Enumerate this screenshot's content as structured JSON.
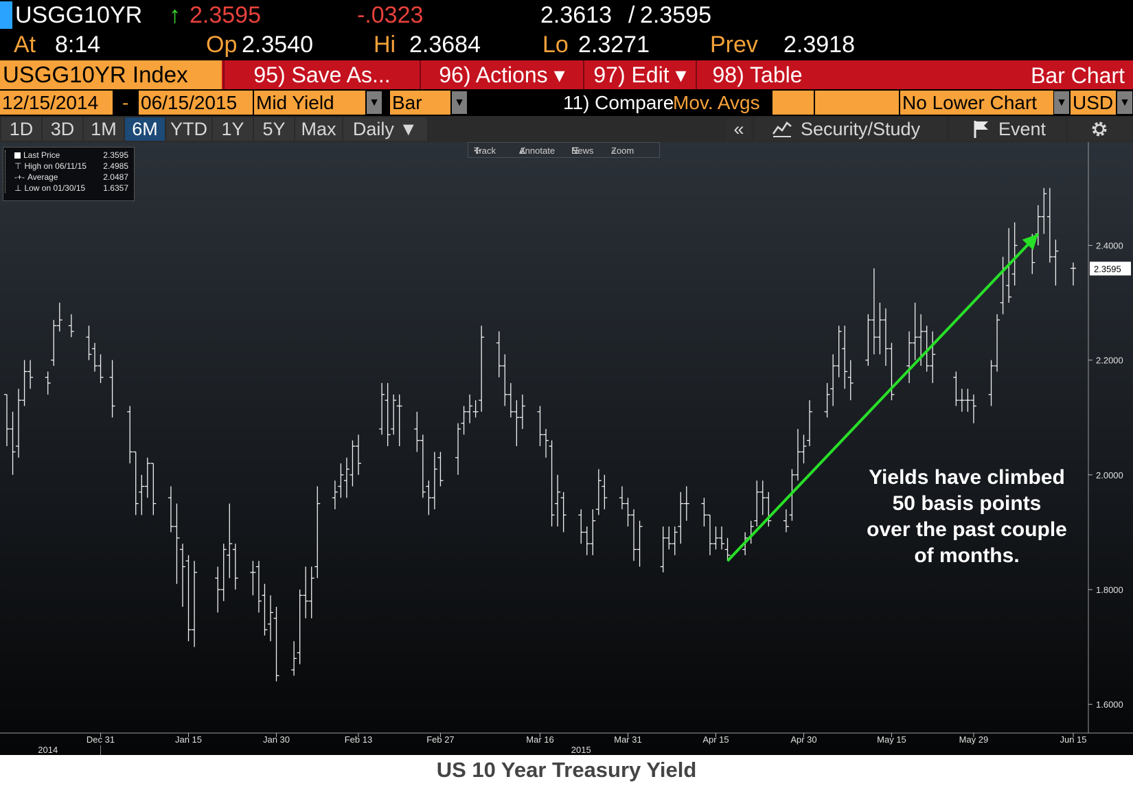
{
  "quote": {
    "ticker": "USGG10YR",
    "arrow": "↑",
    "last": "2.3595",
    "change": "-.0323",
    "bid": "2.3613",
    "sep": "/",
    "ask": "2.3595",
    "at_label": "At",
    "time": "8:14",
    "op_label": "Op",
    "op": "2.3540",
    "hi_label": "Hi",
    "hi": "2.3684",
    "lo_label": "Lo",
    "lo": "2.3271",
    "prev_label": "Prev",
    "prev": "2.3918"
  },
  "menubar": {
    "index_title": "USGG10YR Index",
    "items": [
      "95) Save As...",
      "96) Actions ▾",
      "97) Edit ▾",
      "98) Table"
    ],
    "right_label": "Bar Chart"
  },
  "settings": {
    "start_date": "12/15/2014",
    "dash": "-",
    "end_date": "06/15/2015",
    "field": "Mid Yield",
    "chart_type": "Bar",
    "compare_label": "11) Compare",
    "mov_avgs": "Mov. Avgs",
    "lower_chart": "No Lower Chart",
    "currency": "USD"
  },
  "tabs": {
    "ranges": [
      "1D",
      "3D",
      "1M",
      "6M",
      "YTD",
      "1Y",
      "5Y",
      "Max"
    ],
    "active": "6M",
    "frequency": "Daily ▼",
    "collapse": "«",
    "security_study": "Security/Study",
    "event": "Event"
  },
  "toolstrip": [
    "Track",
    "Annotate",
    "News",
    "Zoom"
  ],
  "legend": [
    {
      "label": "Last Price",
      "value": "2.3595"
    },
    {
      "label": "High on 06/11/15",
      "value": "2.4985"
    },
    {
      "label": "Average",
      "value": "2.0487"
    },
    {
      "label": "Low on 01/30/15",
      "value": "1.6357"
    }
  ],
  "last_price_tag": "2.3595",
  "annotation": {
    "text_lines": [
      "Yields have climbed",
      "50 basis points",
      "over the past couple",
      "of months."
    ],
    "arrow_from": {
      "date": "2015-04-17",
      "value": 1.85
    },
    "arrow_to": {
      "date": "2015-06-09",
      "value": 2.42
    },
    "arrow_color": "#28e028"
  },
  "caption": "US 10 Year Treasury Yield",
  "chart_data": {
    "type": "bar",
    "title": "",
    "xlabel": "",
    "ylabel": "",
    "ylim": [
      1.55,
      2.58
    ],
    "y_ticks": [
      "2.4000",
      "2.2000",
      "2.0000",
      "1.8000",
      "1.6000"
    ],
    "x_ticks": [
      {
        "label": "Dec 31",
        "date": "2014-12-31"
      },
      {
        "label": "Jan 15",
        "date": "2015-01-15"
      },
      {
        "label": "Jan 30",
        "date": "2015-01-30"
      },
      {
        "label": "Feb 13",
        "date": "2015-02-13"
      },
      {
        "label": "Feb 27",
        "date": "2015-02-27"
      },
      {
        "label": "Mar 16",
        "date": "2015-03-16"
      },
      {
        "label": "Mar 31",
        "date": "2015-03-31"
      },
      {
        "label": "Apr 15",
        "date": "2015-04-15"
      },
      {
        "label": "Apr 30",
        "date": "2015-04-30"
      },
      {
        "label": "May 15",
        "date": "2015-05-15"
      },
      {
        "label": "May 29",
        "date": "2015-05-29"
      },
      {
        "label": "Jun 15",
        "date": "2015-06-15"
      }
    ],
    "year_labels": [
      {
        "label": "2014",
        "date": "2014-12-22"
      },
      {
        "label": "2015",
        "date": "2015-03-23"
      }
    ],
    "x_start": "2014-12-15",
    "x_end": "2015-06-15",
    "series": [
      {
        "name": "Mid Yield",
        "ohlc": [
          [
            "2014-12-15",
            2.14,
            2.14,
            2.05,
            2.08
          ],
          [
            "2014-12-16",
            2.08,
            2.11,
            2.0,
            2.04
          ],
          [
            "2014-12-17",
            2.05,
            2.15,
            2.03,
            2.13
          ],
          [
            "2014-12-18",
            2.13,
            2.2,
            2.12,
            2.18
          ],
          [
            "2014-12-19",
            2.18,
            2.2,
            2.15,
            2.17
          ],
          [
            "2014-12-22",
            2.17,
            2.18,
            2.14,
            2.16
          ],
          [
            "2014-12-23",
            2.2,
            2.27,
            2.19,
            2.26
          ],
          [
            "2014-12-24",
            2.26,
            2.3,
            2.25,
            2.27
          ],
          [
            "2014-12-26",
            2.26,
            2.28,
            2.24,
            2.25
          ],
          [
            "2014-12-29",
            2.24,
            2.26,
            2.2,
            2.21
          ],
          [
            "2014-12-30",
            2.22,
            2.23,
            2.18,
            2.19
          ],
          [
            "2014-12-31",
            2.19,
            2.21,
            2.16,
            2.17
          ],
          [
            "2015-01-02",
            2.17,
            2.2,
            2.1,
            2.12
          ],
          [
            "2015-01-05",
            2.11,
            2.12,
            2.02,
            2.04
          ],
          [
            "2015-01-06",
            2.04,
            2.04,
            1.93,
            1.95
          ],
          [
            "2015-01-07",
            1.97,
            2.0,
            1.93,
            1.98
          ],
          [
            "2015-01-08",
            1.98,
            2.03,
            1.96,
            2.02
          ],
          [
            "2015-01-09",
            2.02,
            2.02,
            1.93,
            1.95
          ],
          [
            "2015-01-12",
            1.96,
            1.98,
            1.9,
            1.91
          ],
          [
            "2015-01-13",
            1.91,
            1.95,
            1.81,
            1.89
          ],
          [
            "2015-01-14",
            1.87,
            1.88,
            1.77,
            1.84
          ],
          [
            "2015-01-15",
            1.85,
            1.86,
            1.71,
            1.73
          ],
          [
            "2015-01-16",
            1.73,
            1.85,
            1.7,
            1.83
          ],
          [
            "2015-01-20",
            1.82,
            1.84,
            1.76,
            1.8
          ],
          [
            "2015-01-21",
            1.8,
            1.88,
            1.78,
            1.87
          ],
          [
            "2015-01-22",
            1.86,
            1.95,
            1.82,
            1.88
          ],
          [
            "2015-01-23",
            1.87,
            1.88,
            1.8,
            1.82
          ],
          [
            "2015-01-26",
            1.83,
            1.85,
            1.79,
            1.83
          ],
          [
            "2015-01-27",
            1.84,
            1.85,
            1.76,
            1.78
          ],
          [
            "2015-01-28",
            1.79,
            1.81,
            1.72,
            1.73
          ],
          [
            "2015-01-29",
            1.74,
            1.79,
            1.71,
            1.76
          ],
          [
            "2015-01-30",
            1.75,
            1.77,
            1.64,
            1.65
          ],
          [
            "2015-02-02",
            1.66,
            1.71,
            1.65,
            1.68
          ],
          [
            "2015-02-03",
            1.69,
            1.8,
            1.67,
            1.79
          ],
          [
            "2015-02-04",
            1.79,
            1.84,
            1.75,
            1.78
          ],
          [
            "2015-02-05",
            1.78,
            1.84,
            1.75,
            1.82
          ],
          [
            "2015-02-06",
            1.84,
            1.98,
            1.82,
            1.95
          ],
          [
            "2015-02-09",
            1.96,
            1.99,
            1.94,
            1.97
          ],
          [
            "2015-02-10",
            1.98,
            2.02,
            1.96,
            2.0
          ],
          [
            "2015-02-11",
            1.99,
            2.03,
            1.96,
            2.01
          ],
          [
            "2015-02-12",
            2.0,
            2.06,
            1.98,
            2.05
          ],
          [
            "2015-02-13",
            2.05,
            2.07,
            2.0,
            2.02
          ],
          [
            "2015-02-17",
            2.08,
            2.16,
            2.07,
            2.14
          ],
          [
            "2015-02-18",
            2.13,
            2.16,
            2.05,
            2.07
          ],
          [
            "2015-02-19",
            2.08,
            2.14,
            2.07,
            2.13
          ],
          [
            "2015-02-20",
            2.12,
            2.14,
            2.05,
            2.12
          ],
          [
            "2015-02-23",
            2.08,
            2.11,
            2.04,
            2.06
          ],
          [
            "2015-02-24",
            2.06,
            2.07,
            1.96,
            1.97
          ],
          [
            "2015-02-25",
            1.98,
            1.99,
            1.93,
            1.96
          ],
          [
            "2015-02-26",
            1.96,
            2.04,
            1.94,
            2.01
          ],
          [
            "2015-02-27",
            2.03,
            2.04,
            1.98,
            1.99
          ],
          [
            "2015-03-02",
            2.03,
            2.09,
            2.0,
            2.08
          ],
          [
            "2015-03-03",
            2.09,
            2.12,
            2.07,
            2.11
          ],
          [
            "2015-03-04",
            2.11,
            2.14,
            2.09,
            2.12
          ],
          [
            "2015-03-05",
            2.11,
            2.13,
            2.1,
            2.11
          ],
          [
            "2015-03-06",
            2.13,
            2.26,
            2.11,
            2.24
          ],
          [
            "2015-03-09",
            2.23,
            2.25,
            2.17,
            2.19
          ],
          [
            "2015-03-10",
            2.19,
            2.21,
            2.12,
            2.14
          ],
          [
            "2015-03-11",
            2.14,
            2.16,
            2.1,
            2.11
          ],
          [
            "2015-03-12",
            2.11,
            2.13,
            2.05,
            2.1
          ],
          [
            "2015-03-13",
            2.1,
            2.14,
            2.08,
            2.12
          ],
          [
            "2015-03-16",
            2.11,
            2.12,
            2.05,
            2.07
          ],
          [
            "2015-03-17",
            2.07,
            2.08,
            2.03,
            2.06
          ],
          [
            "2015-03-18",
            2.05,
            2.06,
            1.91,
            1.93
          ],
          [
            "2015-03-19",
            1.95,
            2.0,
            1.91,
            1.97
          ],
          [
            "2015-03-20",
            1.96,
            1.97,
            1.9,
            1.93
          ],
          [
            "2015-03-23",
            1.93,
            1.94,
            1.88,
            1.9
          ],
          [
            "2015-03-24",
            1.9,
            1.91,
            1.86,
            1.88
          ],
          [
            "2015-03-25",
            1.88,
            1.94,
            1.86,
            1.92
          ],
          [
            "2015-03-26",
            1.94,
            2.01,
            1.93,
            1.99
          ],
          [
            "2015-03-27",
            1.98,
            2.0,
            1.94,
            1.96
          ],
          [
            "2015-03-30",
            1.96,
            1.98,
            1.94,
            1.95
          ],
          [
            "2015-03-31",
            1.95,
            1.96,
            1.91,
            1.93
          ],
          [
            "2015-04-01",
            1.93,
            1.94,
            1.85,
            1.87
          ],
          [
            "2015-04-02",
            1.87,
            1.92,
            1.84,
            1.91
          ],
          [
            "2015-04-06",
            1.84,
            1.91,
            1.83,
            1.89
          ],
          [
            "2015-04-07",
            1.89,
            1.91,
            1.87,
            1.88
          ],
          [
            "2015-04-08",
            1.88,
            1.91,
            1.86,
            1.9
          ],
          [
            "2015-04-09",
            1.91,
            1.97,
            1.88,
            1.95
          ],
          [
            "2015-04-10",
            1.95,
            1.98,
            1.92,
            1.95
          ],
          [
            "2015-04-13",
            1.95,
            1.96,
            1.91,
            1.93
          ],
          [
            "2015-04-14",
            1.93,
            1.93,
            1.86,
            1.88
          ],
          [
            "2015-04-15",
            1.88,
            1.91,
            1.87,
            1.89
          ],
          [
            "2015-04-16",
            1.89,
            1.91,
            1.87,
            1.88
          ],
          [
            "2015-04-17",
            1.87,
            1.89,
            1.85,
            1.86
          ],
          [
            "2015-04-20",
            1.87,
            1.9,
            1.86,
            1.89
          ],
          [
            "2015-04-21",
            1.89,
            1.92,
            1.88,
            1.91
          ],
          [
            "2015-04-22",
            1.92,
            1.99,
            1.91,
            1.97
          ],
          [
            "2015-04-23",
            1.97,
            1.99,
            1.93,
            1.96
          ],
          [
            "2015-04-24",
            1.96,
            1.97,
            1.91,
            1.92
          ],
          [
            "2015-04-27",
            1.92,
            1.94,
            1.9,
            1.91
          ],
          [
            "2015-04-28",
            1.93,
            2.01,
            1.92,
            2.0
          ],
          [
            "2015-04-29",
            2.0,
            2.08,
            1.99,
            2.04
          ],
          [
            "2015-04-30",
            2.04,
            2.07,
            2.02,
            2.05
          ],
          [
            "2015-05-01",
            2.06,
            2.13,
            2.05,
            2.11
          ],
          [
            "2015-05-04",
            2.11,
            2.16,
            2.1,
            2.14
          ],
          [
            "2015-05-05",
            2.15,
            2.21,
            2.12,
            2.19
          ],
          [
            "2015-05-06",
            2.19,
            2.26,
            2.17,
            2.25
          ],
          [
            "2015-05-07",
            2.22,
            2.26,
            2.15,
            2.18
          ],
          [
            "2015-05-08",
            2.17,
            2.2,
            2.13,
            2.16
          ],
          [
            "2015-05-11",
            2.2,
            2.28,
            2.19,
            2.27
          ],
          [
            "2015-05-12",
            2.27,
            2.36,
            2.21,
            2.24
          ],
          [
            "2015-05-13",
            2.24,
            2.3,
            2.21,
            2.27
          ],
          [
            "2015-05-14",
            2.27,
            2.29,
            2.19,
            2.22
          ],
          [
            "2015-05-15",
            2.22,
            2.23,
            2.13,
            2.14
          ],
          [
            "2015-05-18",
            2.19,
            2.25,
            2.16,
            2.23
          ],
          [
            "2015-05-19",
            2.23,
            2.3,
            2.2,
            2.24
          ],
          [
            "2015-05-20",
            2.24,
            2.28,
            2.19,
            2.25
          ],
          [
            "2015-05-21",
            2.25,
            2.26,
            2.18,
            2.19
          ],
          [
            "2015-05-22",
            2.19,
            2.25,
            2.16,
            2.21
          ],
          [
            "2015-05-26",
            2.17,
            2.18,
            2.12,
            2.13
          ],
          [
            "2015-05-27",
            2.13,
            2.15,
            2.11,
            2.13
          ],
          [
            "2015-05-28",
            2.13,
            2.15,
            2.11,
            2.13
          ],
          [
            "2015-05-29",
            2.13,
            2.14,
            2.09,
            2.12
          ],
          [
            "2015-06-01",
            2.14,
            2.2,
            2.12,
            2.19
          ],
          [
            "2015-06-02",
            2.19,
            2.28,
            2.18,
            2.27
          ],
          [
            "2015-06-03",
            2.3,
            2.38,
            2.28,
            2.36
          ],
          [
            "2015-06-04",
            2.33,
            2.43,
            2.3,
            2.31
          ],
          [
            "2015-06-05",
            2.35,
            2.44,
            2.33,
            2.4
          ],
          [
            "2015-06-08",
            2.4,
            2.42,
            2.35,
            2.37
          ],
          [
            "2015-06-09",
            2.42,
            2.47,
            2.4,
            2.45
          ],
          [
            "2015-06-10",
            2.45,
            2.5,
            2.42,
            2.49
          ],
          [
            "2015-06-11",
            2.45,
            2.5,
            2.37,
            2.38
          ],
          [
            "2015-06-12",
            2.38,
            2.41,
            2.33,
            2.39
          ],
          [
            "2015-06-15",
            2.36,
            2.37,
            2.33,
            2.36
          ]
        ]
      }
    ]
  }
}
